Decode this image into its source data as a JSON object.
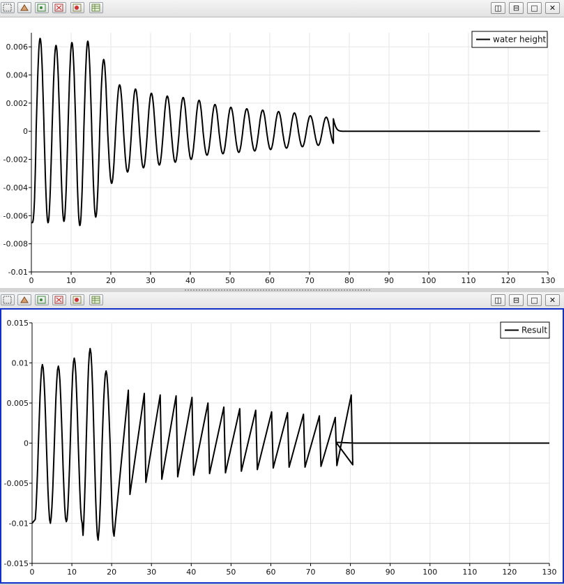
{
  "toolbar_icons": [
    "select-points-icon",
    "select-cells-icon",
    "zoom-select-icon",
    "clear-selection-icon",
    "grab-icon",
    "spreadsheet-icon"
  ],
  "window_buttons": {
    "split_horizontal": "◫",
    "split_vertical": "⊟",
    "maximize": "□",
    "close": "✕"
  },
  "colors": {
    "line": "#000000",
    "grid": "#e6e6e6",
    "active_border": "#1030c8"
  },
  "chart_data": [
    {
      "type": "line",
      "series": [
        {
          "name": "water height",
          "period": 4,
          "decay_end": 76,
          "flat_from": 78,
          "peaks": [
            0.0066,
            0.0061,
            0.0063,
            0.0064,
            0.0051,
            0.0033,
            0.003,
            0.0027,
            0.0025,
            0.0024,
            0.0022,
            0.0019,
            0.0017,
            0.0016,
            0.0015,
            0.0014,
            0.0013,
            0.0011,
            0.001,
            0.0024
          ],
          "troughs": [
            -0.0065,
            -0.0064,
            -0.0067,
            -0.0061,
            -0.0037,
            -0.0029,
            -0.0026,
            -0.0024,
            -0.0022,
            -0.002,
            -0.0017,
            -0.0016,
            -0.0015,
            -0.0014,
            -0.0013,
            -0.0012,
            -0.0011,
            -0.001,
            -0.0009,
            -0.0009
          ]
        }
      ],
      "xlim": [
        0,
        130
      ],
      "ylim": [
        -0.01,
        0.007
      ],
      "xticks": [
        "0",
        "10",
        "20",
        "30",
        "40",
        "50",
        "60",
        "70",
        "80",
        "90",
        "100",
        "110",
        "120",
        "130"
      ],
      "yticks": [
        "-0.01",
        "-0.008",
        "-0.006",
        "-0.004",
        "-0.002",
        "0",
        "0.002",
        "0.004",
        "0.006"
      ],
      "legend": "top-right",
      "grid": true
    },
    {
      "type": "line",
      "series": [
        {
          "name": "Result",
          "period": 4,
          "flat_from": 77,
          "peaks": [
            0.0098,
            0.0096,
            0.0106,
            0.0118,
            0.009,
            0.0066,
            0.0062,
            0.006,
            0.0059,
            0.0057,
            0.005,
            0.0045,
            0.0043,
            0.0041,
            0.0039,
            0.0038,
            0.0036,
            0.0034,
            0.0032,
            0.006
          ],
          "troughs": [
            -0.01,
            -0.0098,
            -0.01,
            -0.0121,
            -0.0116,
            -0.0064,
            -0.0049,
            -0.0045,
            -0.0042,
            -0.004,
            -0.0038,
            -0.0037,
            -0.0035,
            -0.0033,
            -0.0031,
            -0.003,
            -0.003,
            -0.0029,
            -0.0028,
            -0.0027
          ]
        }
      ],
      "xlim": [
        0,
        130
      ],
      "ylim": [
        -0.015,
        0.015
      ],
      "xticks": [
        "0",
        "10",
        "20",
        "30",
        "40",
        "50",
        "60",
        "70",
        "80",
        "90",
        "100",
        "110",
        "120",
        "130"
      ],
      "yticks": [
        "-0.015",
        "-0.01",
        "-0.005",
        "0",
        "0.005",
        "0.01",
        "0.015"
      ],
      "legend": "top-right",
      "grid": true
    }
  ]
}
